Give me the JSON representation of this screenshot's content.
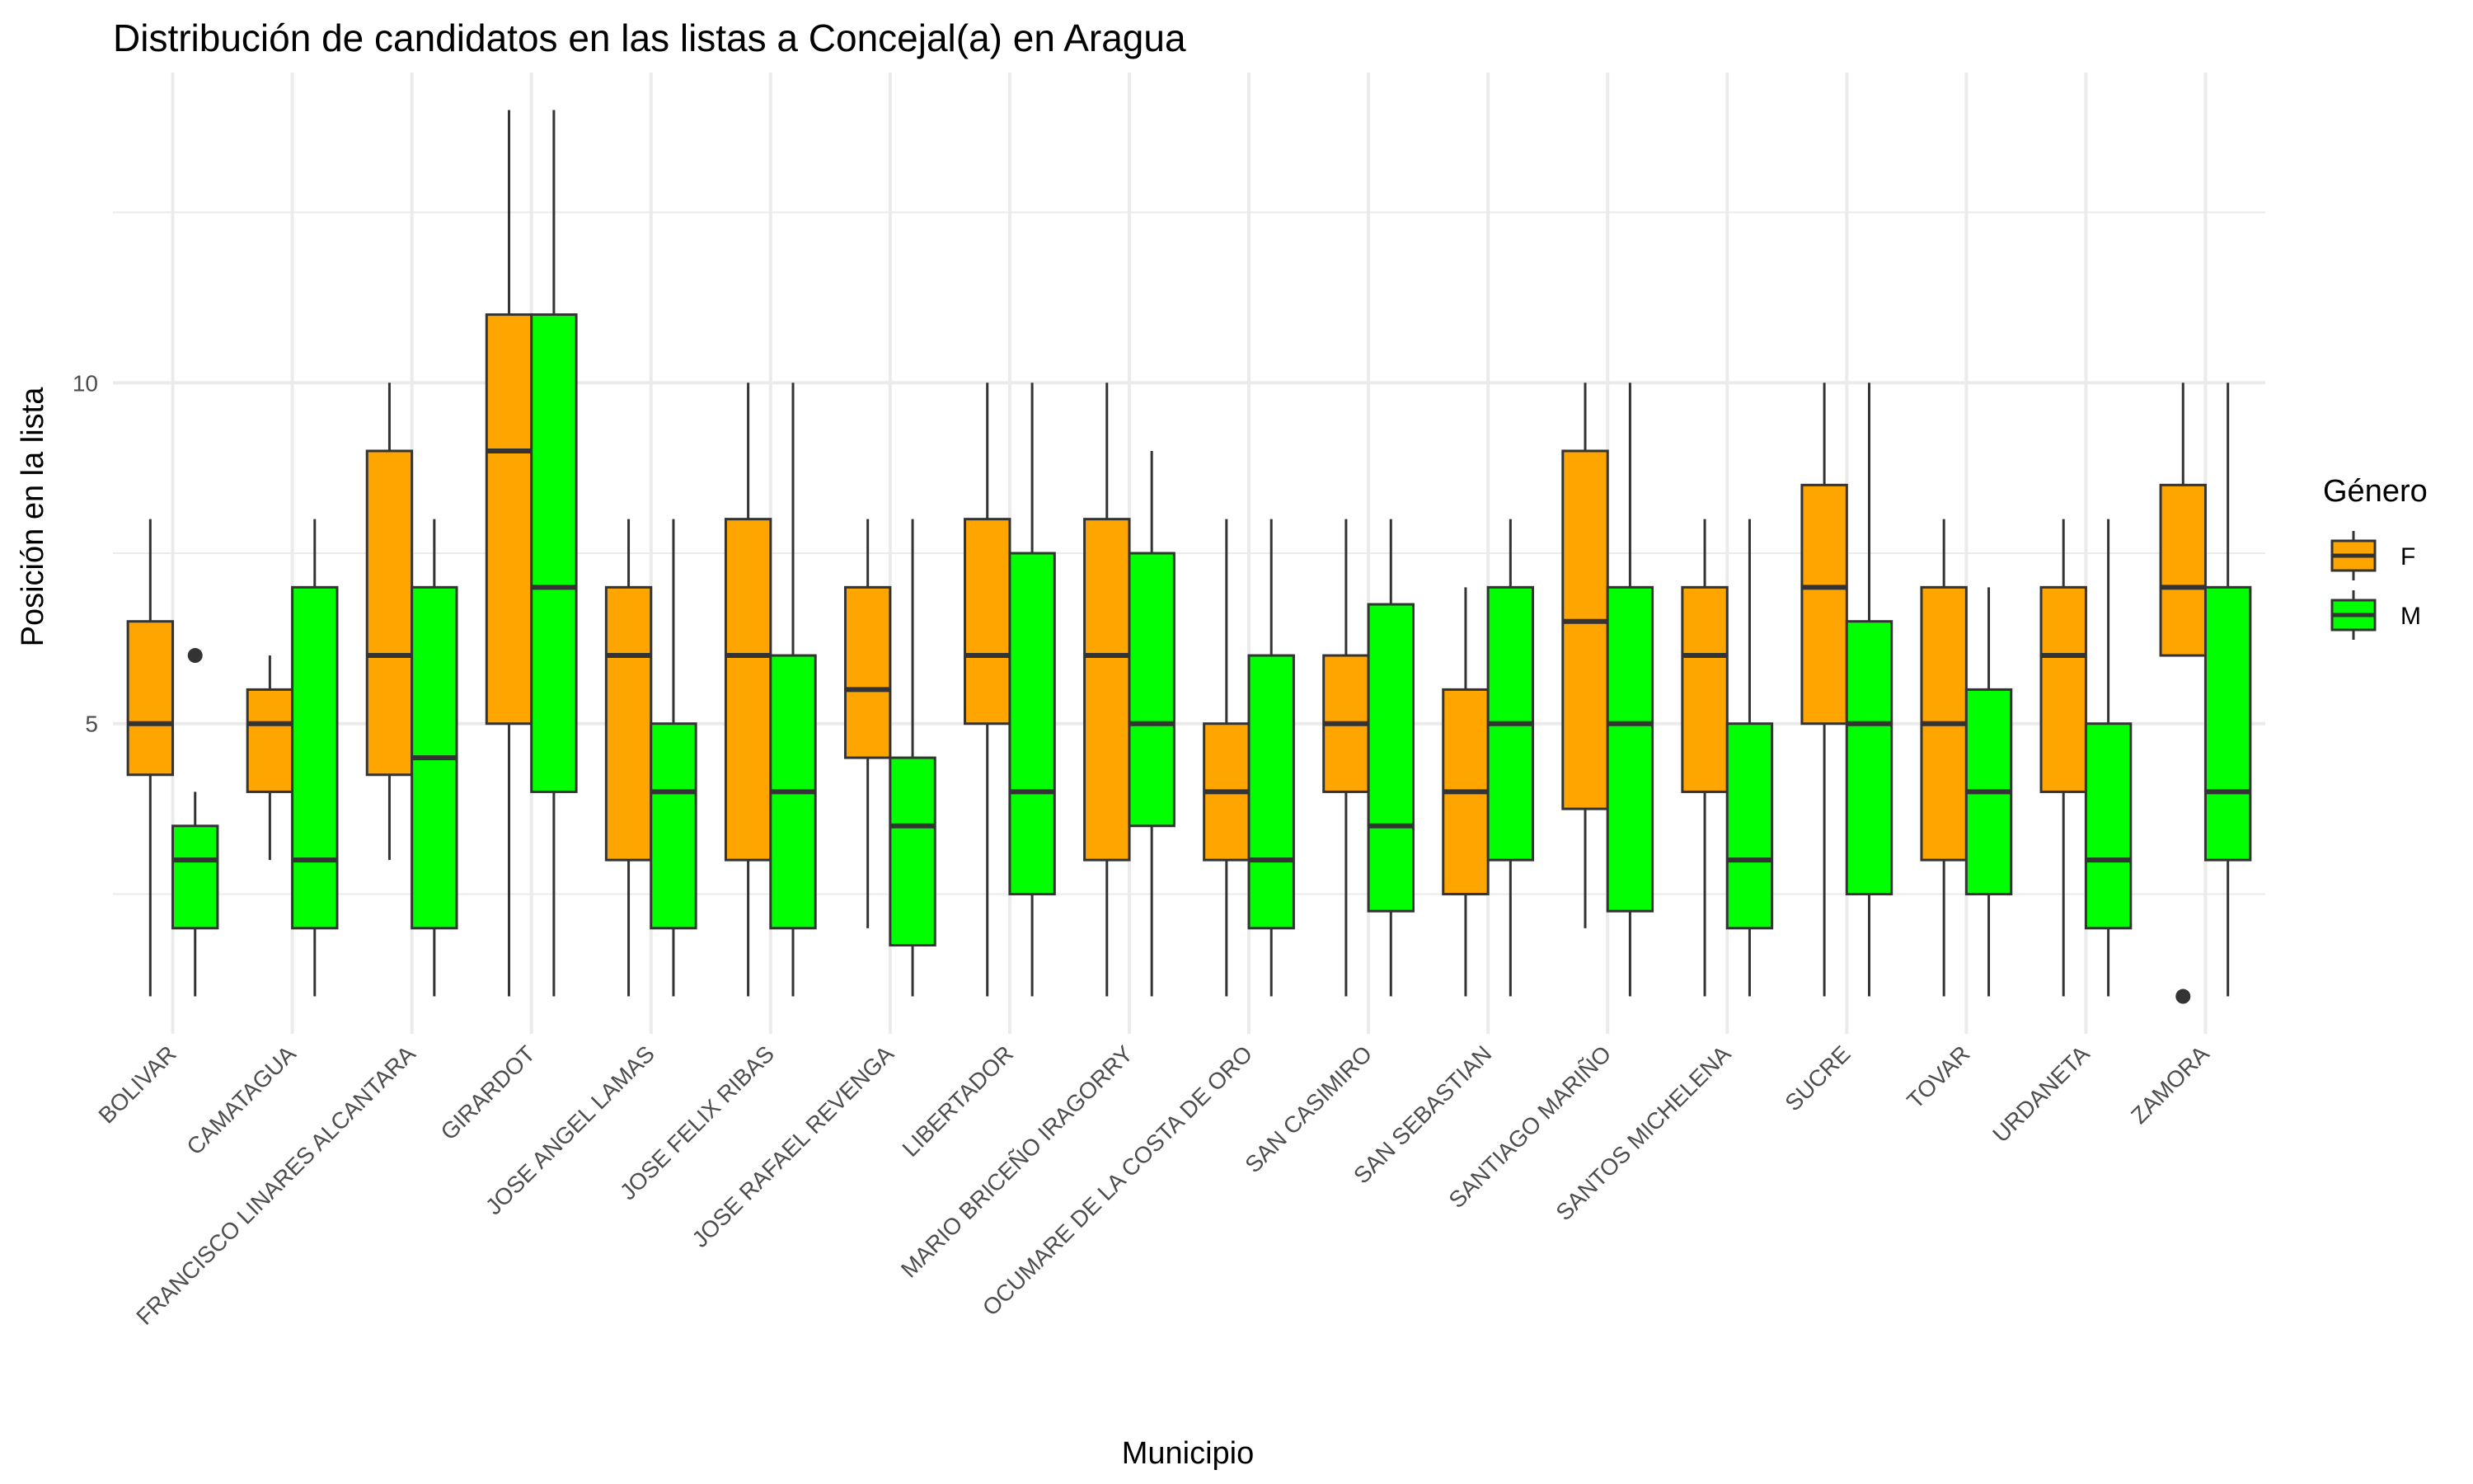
{
  "chart_data": {
    "type": "boxplot",
    "title": "Distribución de candidatos en las listas a Concejal(a) en Aragua",
    "xlabel": "Municipio",
    "ylabel": "Posición en la lista",
    "ylim": [
      0.45,
      14.55
    ],
    "yticks": [
      5,
      10
    ],
    "grid": true,
    "legend": {
      "title": "Género",
      "position": "right",
      "entries": [
        {
          "key": "F",
          "label": "F",
          "color": "#FFA500"
        },
        {
          "key": "M",
          "label": "M",
          "color": "#00FF00"
        }
      ]
    },
    "box_stroke": "#333333",
    "categories": [
      "BOLIVAR",
      "CAMATAGUA",
      "FRANCISCO LINARES ALCANTARA",
      "GIRARDOT",
      "JOSE ANGEL LAMAS",
      "JOSE FELIX RIBAS",
      "JOSE RAFAEL REVENGA",
      "LIBERTADOR",
      "MARIO BRICEÑO IRAGORRY",
      "OCUMARE DE LA COSTA DE ORO",
      "SAN CASIMIRO",
      "SAN SEBASTIAN",
      "SANTIAGO MARIÑO",
      "SANTOS MICHELENA",
      "SUCRE",
      "TOVAR",
      "URDANETA",
      "ZAMORA"
    ],
    "series": [
      {
        "name": "F",
        "boxes": [
          {
            "min": 1,
            "q1": 4.25,
            "median": 5,
            "q3": 6.5,
            "max": 8,
            "outliers": []
          },
          {
            "min": 3,
            "q1": 4,
            "median": 5,
            "q3": 5.5,
            "max": 6,
            "outliers": []
          },
          {
            "min": 3,
            "q1": 4.25,
            "median": 6,
            "q3": 9,
            "max": 10,
            "outliers": []
          },
          {
            "min": 1,
            "q1": 5,
            "median": 9,
            "q3": 11,
            "max": 14,
            "outliers": []
          },
          {
            "min": 1,
            "q1": 3,
            "median": 6,
            "q3": 7,
            "max": 8,
            "outliers": []
          },
          {
            "min": 1,
            "q1": 3,
            "median": 6,
            "q3": 8,
            "max": 10,
            "outliers": []
          },
          {
            "min": 2,
            "q1": 4.5,
            "median": 5.5,
            "q3": 7,
            "max": 8,
            "outliers": []
          },
          {
            "min": 1,
            "q1": 5,
            "median": 6,
            "q3": 8,
            "max": 10,
            "outliers": []
          },
          {
            "min": 1,
            "q1": 3,
            "median": 6,
            "q3": 8,
            "max": 10,
            "outliers": []
          },
          {
            "min": 1,
            "q1": 3,
            "median": 4,
            "q3": 5,
            "max": 8,
            "outliers": []
          },
          {
            "min": 1,
            "q1": 4,
            "median": 5,
            "q3": 6,
            "max": 8,
            "outliers": []
          },
          {
            "min": 1,
            "q1": 2.5,
            "median": 4,
            "q3": 5.5,
            "max": 7,
            "outliers": []
          },
          {
            "min": 2,
            "q1": 3.75,
            "median": 6.5,
            "q3": 9,
            "max": 10,
            "outliers": []
          },
          {
            "min": 1,
            "q1": 4,
            "median": 6,
            "q3": 7,
            "max": 8,
            "outliers": []
          },
          {
            "min": 1,
            "q1": 5,
            "median": 7,
            "q3": 8.5,
            "max": 10,
            "outliers": []
          },
          {
            "min": 1,
            "q1": 3,
            "median": 5,
            "q3": 7,
            "max": 8,
            "outliers": []
          },
          {
            "min": 1,
            "q1": 4,
            "median": 6,
            "q3": 7,
            "max": 8,
            "outliers": []
          },
          {
            "min": 6,
            "q1": 6,
            "median": 7,
            "q3": 8.5,
            "max": 10,
            "outliers": [
              1
            ]
          }
        ]
      },
      {
        "name": "M",
        "boxes": [
          {
            "min": 1,
            "q1": 2,
            "median": 3,
            "q3": 3.5,
            "max": 4,
            "outliers": [
              6
            ]
          },
          {
            "min": 1,
            "q1": 2,
            "median": 3,
            "q3": 7,
            "max": 8,
            "outliers": []
          },
          {
            "min": 1,
            "q1": 2,
            "median": 4.5,
            "q3": 7,
            "max": 8,
            "outliers": []
          },
          {
            "min": 1,
            "q1": 4,
            "median": 7,
            "q3": 11,
            "max": 14,
            "outliers": []
          },
          {
            "min": 1,
            "q1": 2,
            "median": 4,
            "q3": 5,
            "max": 8,
            "outliers": []
          },
          {
            "min": 1,
            "q1": 2,
            "median": 4,
            "q3": 6,
            "max": 10,
            "outliers": []
          },
          {
            "min": 1,
            "q1": 1.75,
            "median": 3.5,
            "q3": 4.5,
            "max": 8,
            "outliers": []
          },
          {
            "min": 1,
            "q1": 2.5,
            "median": 4,
            "q3": 7.5,
            "max": 10,
            "outliers": []
          },
          {
            "min": 1,
            "q1": 3.5,
            "median": 5,
            "q3": 7.5,
            "max": 9,
            "outliers": []
          },
          {
            "min": 1,
            "q1": 2,
            "median": 3,
            "q3": 6,
            "max": 8,
            "outliers": []
          },
          {
            "min": 1,
            "q1": 2.25,
            "median": 3.5,
            "q3": 6.75,
            "max": 8,
            "outliers": []
          },
          {
            "min": 1,
            "q1": 3,
            "median": 5,
            "q3": 7,
            "max": 8,
            "outliers": []
          },
          {
            "min": 1,
            "q1": 2.25,
            "median": 5,
            "q3": 7,
            "max": 10,
            "outliers": []
          },
          {
            "min": 1,
            "q1": 2,
            "median": 3,
            "q3": 5,
            "max": 8,
            "outliers": []
          },
          {
            "min": 1,
            "q1": 2.5,
            "median": 5,
            "q3": 6.5,
            "max": 10,
            "outliers": []
          },
          {
            "min": 1,
            "q1": 2.5,
            "median": 4,
            "q3": 5.5,
            "max": 7,
            "outliers": []
          },
          {
            "min": 1,
            "q1": 2,
            "median": 3,
            "q3": 5,
            "max": 8,
            "outliers": []
          },
          {
            "min": 1,
            "q1": 3,
            "median": 4,
            "q3": 7,
            "max": 10,
            "outliers": []
          }
        ]
      }
    ]
  }
}
